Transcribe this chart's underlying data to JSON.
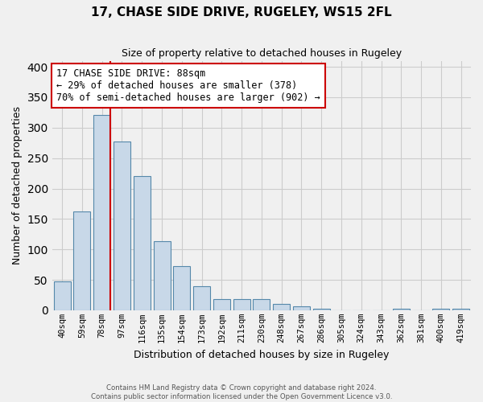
{
  "title": "17, CHASE SIDE DRIVE, RUGELEY, WS15 2FL",
  "subtitle": "Size of property relative to detached houses in Rugeley",
  "xlabel": "Distribution of detached houses by size in Rugeley",
  "ylabel": "Number of detached properties",
  "footnote1": "Contains HM Land Registry data © Crown copyright and database right 2024.",
  "footnote2": "Contains public sector information licensed under the Open Government Licence v3.0.",
  "bar_labels": [
    "40sqm",
    "59sqm",
    "78sqm",
    "97sqm",
    "116sqm",
    "135sqm",
    "154sqm",
    "173sqm",
    "192sqm",
    "211sqm",
    "230sqm",
    "248sqm",
    "267sqm",
    "286sqm",
    "305sqm",
    "324sqm",
    "343sqm",
    "362sqm",
    "381sqm",
    "400sqm",
    "419sqm"
  ],
  "bar_values": [
    47,
    163,
    321,
    277,
    221,
    114,
    73,
    39,
    18,
    18,
    18,
    10,
    7,
    3,
    0,
    0,
    0,
    3,
    0,
    3,
    2
  ],
  "bar_color": "#c8d8e8",
  "bar_edge_color": "#5588aa",
  "grid_color": "#cccccc",
  "bg_color": "#f0f0f0",
  "vline_color": "#cc0000",
  "annotation_title": "17 CHASE SIDE DRIVE: 88sqm",
  "annotation_line1": "← 29% of detached houses are smaller (378)",
  "annotation_line2": "70% of semi-detached houses are larger (902) →",
  "annotation_box_color": "#ffffff",
  "annotation_box_edge": "#cc0000",
  "ylim": [
    0,
    410
  ],
  "yticks": [
    0,
    50,
    100,
    150,
    200,
    250,
    300,
    350,
    400
  ]
}
